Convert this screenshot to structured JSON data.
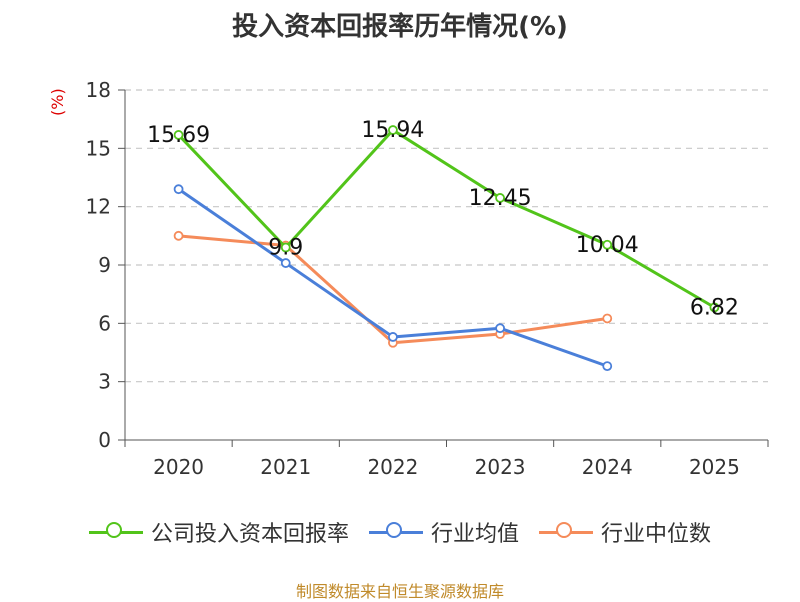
{
  "chart_data": {
    "type": "line",
    "title": "投入资本回报率历年情况(%)",
    "ylabel": "(%)",
    "xlabel": "",
    "categories": [
      "2020",
      "2021",
      "2022",
      "2023",
      "2024",
      "2025"
    ],
    "ylim": [
      0,
      18
    ],
    "yticks": [
      0,
      3,
      6,
      9,
      12,
      15,
      18
    ],
    "grid": true,
    "legend_position": "bottom",
    "series": [
      {
        "name": "公司投入资本回报率",
        "color": "#52c41a",
        "values": [
          15.69,
          9.9,
          15.94,
          12.45,
          10.04,
          6.82
        ],
        "labels": [
          "15.69",
          "9.9",
          "15.94",
          "12.45",
          "10.04",
          "6.82"
        ]
      },
      {
        "name": "行业均值",
        "color": "#4a7fd9",
        "values": [
          12.9,
          9.1,
          5.3,
          5.75,
          3.8,
          null
        ]
      },
      {
        "name": "行业中位数",
        "color": "#f58b5a",
        "values": [
          10.5,
          10.0,
          5.0,
          5.45,
          6.25,
          null
        ]
      }
    ]
  },
  "source": "制图数据来自恒生聚源数据库"
}
